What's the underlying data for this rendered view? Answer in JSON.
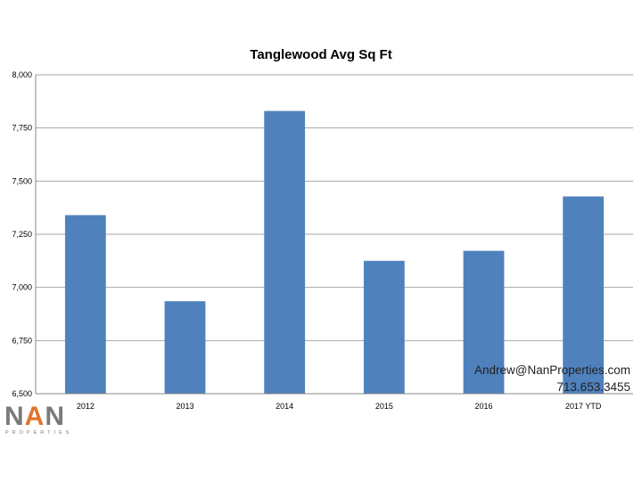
{
  "chart_data": {
    "type": "bar",
    "title": "Tanglewood Avg Sq Ft",
    "xlabel": "",
    "ylabel": "",
    "categories": [
      "2012",
      "2013",
      "2014",
      "2015",
      "2016",
      "2017 YTD"
    ],
    "values": [
      7340,
      6935,
      7830,
      7125,
      7172,
      7428
    ],
    "ylim": [
      6500,
      8000
    ],
    "yticks": [
      6500,
      6750,
      7000,
      7250,
      7500,
      7750,
      8000
    ],
    "ytick_labels": [
      "6,500",
      "6,750",
      "7,000",
      "7,250",
      "7,500",
      "7,750",
      "8,000"
    ],
    "grid": true,
    "legend": "none",
    "bar_color": "#4f81bd"
  },
  "contact": {
    "email": "Andrew@NanProperties.com",
    "phone": "713.653.3455"
  },
  "logo": {
    "mark": "NAN",
    "sub": "PROPERTIES",
    "gray_color": "#7a7a7a",
    "accent_color": "#e0742b"
  }
}
